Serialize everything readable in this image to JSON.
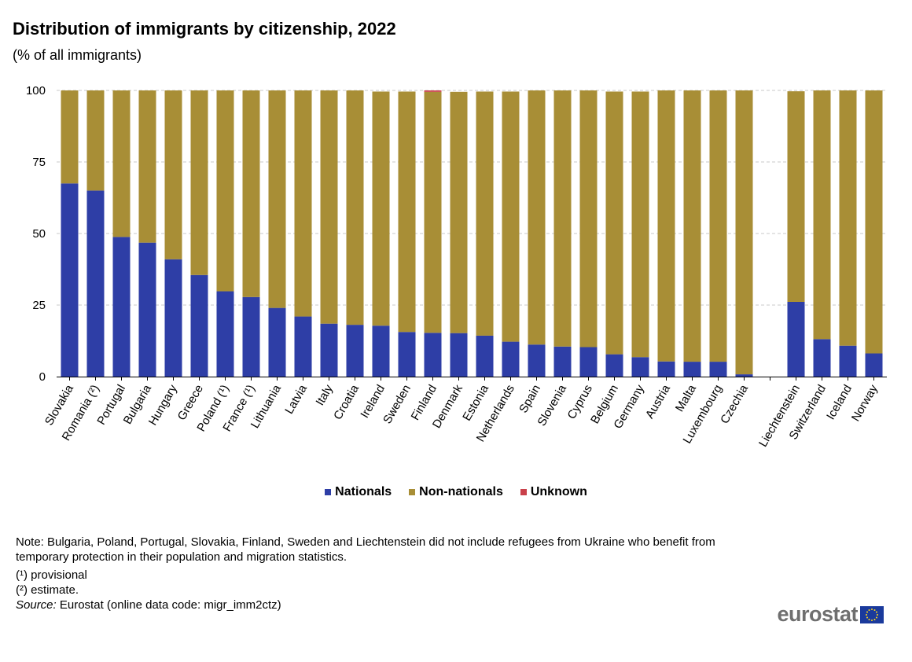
{
  "title": "Distribution of immigrants by citizenship, 2022",
  "subtitle": "(% of all immigrants)",
  "colors": {
    "nationals": "#2e3ea6",
    "non_nationals": "#a88e36",
    "unknown": "#c9404a",
    "grid": "#c8c8c8"
  },
  "legend": {
    "nationals": "Nationals",
    "non_nationals": "Non-nationals",
    "unknown": "Unknown"
  },
  "notes": {
    "main": "Note: Bulgaria, Poland, Portugal, Slovakia, Finland, Sweden and Liechtenstein did not include refugees from Ukraine who benefit from temporary protection in their population and migration statistics.",
    "fn1": "(¹) provisional",
    "fn2": "(²) estimate.",
    "source_label": "Source:",
    "source_text": " Eurostat  (online data code: migr_imm2ctz)"
  },
  "logo": {
    "text": "eurostat",
    "icon": "eu-flag-icon"
  },
  "chart_data": {
    "type": "bar",
    "stacked": true,
    "categories": [
      "Slovakia",
      "Romania (²)",
      "Portugal",
      "Bulgaria",
      "Hungary",
      "Greece",
      "Poland (¹)",
      "France (¹)",
      "Lithuania",
      "Latvia",
      "Italy",
      "Croatia",
      "Ireland",
      "Sweden",
      "Finland",
      "Denmark",
      "Estonia",
      "Netherlands",
      "Spain",
      "Slovenia",
      "Cyprus",
      "Belgium",
      "Germany",
      "Austria",
      "Malta",
      "Luxembourg",
      "Czechia",
      "",
      "Liechtenstein",
      "Switzerland",
      "Iceland",
      "Norway"
    ],
    "series": [
      {
        "name": "Nationals",
        "values": [
          67.5,
          65,
          48.8,
          46.8,
          41,
          35.5,
          29.8,
          27.8,
          24,
          21,
          18.5,
          18.1,
          17.8,
          15.6,
          15.3,
          15.2,
          14.3,
          12.2,
          11.2,
          10.5,
          10.3,
          7.8,
          6.8,
          5.3,
          5.2,
          5.2,
          0.8,
          null,
          26.1,
          13.1,
          10.8,
          8.1
        ]
      },
      {
        "name": "Non-nationals",
        "values": [
          32.5,
          35,
          51.2,
          53.2,
          59,
          64.5,
          70.2,
          72.2,
          76,
          79,
          81.5,
          81.9,
          81.8,
          84,
          84.2,
          84.3,
          85.3,
          87.4,
          88.8,
          89.5,
          89.7,
          91.8,
          92.8,
          94.7,
          94.8,
          94.8,
          99.2,
          null,
          73.6,
          86.9,
          89.2,
          91.9
        ]
      },
      {
        "name": "Unknown",
        "values": [
          0,
          0,
          0,
          0,
          0,
          0,
          0,
          0,
          0,
          0,
          0,
          0,
          0,
          0,
          0.5,
          0,
          0,
          0,
          0,
          0,
          0,
          0,
          0,
          0,
          0,
          0,
          0,
          null,
          0,
          0,
          0,
          0
        ]
      }
    ],
    "ylim": [
      0,
      100
    ],
    "yticks": [
      "0",
      "25",
      "50",
      "75",
      "100"
    ],
    "grid": true,
    "legend_position": "bottom"
  }
}
